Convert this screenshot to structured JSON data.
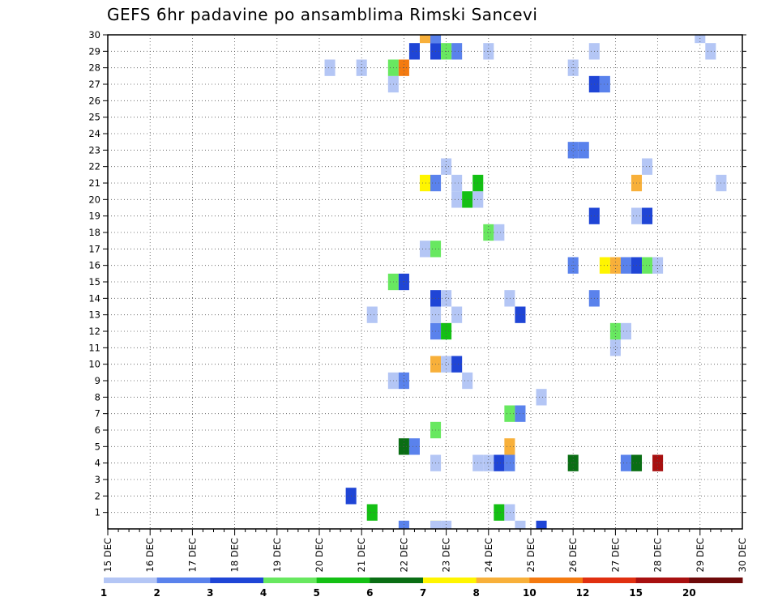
{
  "chart_data": {
    "type": "heatmap",
    "title": "GEFS 6hr padavine po ansamblima Rimski Sancevi",
    "x_tick_labels": [
      "15 DEC",
      "16 DEC",
      "17 DEC",
      "18 DEC",
      "19 DEC",
      "20 DEC",
      "21 DEC",
      "22 DEC",
      "23 DEC",
      "24 DEC",
      "25 DEC",
      "26 DEC",
      "27 DEC",
      "28 DEC",
      "29 DEC",
      "30 DEC"
    ],
    "y_tick_labels": [
      "1",
      "2",
      "3",
      "4",
      "5",
      "6",
      "7",
      "8",
      "9",
      "10",
      "11",
      "12",
      "13",
      "14",
      "15",
      "16",
      "17",
      "18",
      "19",
      "20",
      "21",
      "22",
      "23",
      "24",
      "25",
      "26",
      "27",
      "28",
      "29",
      "30"
    ],
    "x_range_days": [
      15,
      30
    ],
    "y_range": [
      0,
      30
    ],
    "grid": true,
    "time_step_days": 0.25,
    "colorbar": {
      "labels": [
        "1",
        "2",
        "3",
        "4",
        "5",
        "6",
        "7",
        "8",
        "10",
        "12",
        "15",
        "20"
      ],
      "colors": [
        "#b4c6f5",
        "#5a82ec",
        "#1f45d6",
        "#68e860",
        "#14c014",
        "#0a6e14",
        "#fff500",
        "#f8b03a",
        "#f47a10",
        "#e03010",
        "#a81010",
        "#6e0a0a"
      ]
    },
    "cells": [
      {
        "t": 22.0,
        "m": 0,
        "c": 1
      },
      {
        "t": 22.75,
        "m": 0,
        "c": 6
      },
      {
        "t": 22.75,
        "m": 0,
        "c": 0
      },
      {
        "t": 23.0,
        "m": 0,
        "c": 0
      },
      {
        "t": 24.75,
        "m": 0,
        "c": 0
      },
      {
        "t": 25.25,
        "m": 0,
        "c": 2
      },
      {
        "t": 21.25,
        "m": 1,
        "c": 4
      },
      {
        "t": 24.25,
        "m": 1,
        "c": 4
      },
      {
        "t": 24.5,
        "m": 1,
        "c": 0
      },
      {
        "t": 20.75,
        "m": 2,
        "c": 2
      },
      {
        "t": 22.75,
        "m": 4,
        "c": 0
      },
      {
        "t": 23.75,
        "m": 4,
        "c": 0
      },
      {
        "t": 24.0,
        "m": 4,
        "c": 0
      },
      {
        "t": 24.25,
        "m": 4,
        "c": 2
      },
      {
        "t": 24.5,
        "m": 4,
        "c": 1
      },
      {
        "t": 26.0,
        "m": 4,
        "c": 5
      },
      {
        "t": 27.25,
        "m": 4,
        "c": 1
      },
      {
        "t": 27.5,
        "m": 4,
        "c": 5
      },
      {
        "t": 28.0,
        "m": 4,
        "c": 10
      },
      {
        "t": 22.0,
        "m": 5,
        "c": 5
      },
      {
        "t": 22.25,
        "m": 5,
        "c": 1
      },
      {
        "t": 24.5,
        "m": 5,
        "c": 7
      },
      {
        "t": 22.75,
        "m": 6,
        "c": 3
      },
      {
        "t": 24.5,
        "m": 7,
        "c": 3
      },
      {
        "t": 24.75,
        "m": 7,
        "c": 1
      },
      {
        "t": 25.25,
        "m": 8,
        "c": 0
      },
      {
        "t": 21.75,
        "m": 9,
        "c": 0
      },
      {
        "t": 22.0,
        "m": 9,
        "c": 1
      },
      {
        "t": 23.5,
        "m": 9,
        "c": 0
      },
      {
        "t": 22.75,
        "m": 10,
        "c": 7
      },
      {
        "t": 23.0,
        "m": 10,
        "c": 0
      },
      {
        "t": 23.25,
        "m": 10,
        "c": 2
      },
      {
        "t": 27.0,
        "m": 11,
        "c": 0
      },
      {
        "t": 22.75,
        "m": 12,
        "c": 1
      },
      {
        "t": 23.0,
        "m": 12,
        "c": 4
      },
      {
        "t": 27.0,
        "m": 12,
        "c": 3
      },
      {
        "t": 27.25,
        "m": 12,
        "c": 0
      },
      {
        "t": 21.25,
        "m": 13,
        "c": 0
      },
      {
        "t": 22.75,
        "m": 13,
        "c": 0
      },
      {
        "t": 23.25,
        "m": 13,
        "c": 0
      },
      {
        "t": 24.75,
        "m": 13,
        "c": 2
      },
      {
        "t": 22.75,
        "m": 14,
        "c": 2
      },
      {
        "t": 23.0,
        "m": 14,
        "c": 0
      },
      {
        "t": 24.5,
        "m": 14,
        "c": 0
      },
      {
        "t": 26.5,
        "m": 14,
        "c": 1
      },
      {
        "t": 21.75,
        "m": 15,
        "c": 3
      },
      {
        "t": 22.0,
        "m": 15,
        "c": 2
      },
      {
        "t": 26.0,
        "m": 16,
        "c": 1
      },
      {
        "t": 26.75,
        "m": 16,
        "c": 6
      },
      {
        "t": 27.0,
        "m": 16,
        "c": 7
      },
      {
        "t": 27.25,
        "m": 16,
        "c": 1
      },
      {
        "t": 27.5,
        "m": 16,
        "c": 2
      },
      {
        "t": 27.75,
        "m": 16,
        "c": 3
      },
      {
        "t": 28.0,
        "m": 16,
        "c": 0
      },
      {
        "t": 22.5,
        "m": 17,
        "c": 0
      },
      {
        "t": 22.75,
        "m": 17,
        "c": 3
      },
      {
        "t": 24.0,
        "m": 18,
        "c": 3
      },
      {
        "t": 24.25,
        "m": 18,
        "c": 0
      },
      {
        "t": 26.5,
        "m": 19,
        "c": 2
      },
      {
        "t": 27.5,
        "m": 19,
        "c": 0
      },
      {
        "t": 27.75,
        "m": 19,
        "c": 2
      },
      {
        "t": 23.25,
        "m": 20,
        "c": 0
      },
      {
        "t": 23.5,
        "m": 20,
        "c": 4
      },
      {
        "t": 23.75,
        "m": 20,
        "c": 0
      },
      {
        "t": 27.5,
        "m": 21,
        "c": 7
      },
      {
        "t": 22.5,
        "m": 21,
        "c": 6
      },
      {
        "t": 22.75,
        "m": 21,
        "c": 1
      },
      {
        "t": 23.25,
        "m": 21,
        "c": 0
      },
      {
        "t": 23.75,
        "m": 21,
        "c": 4
      },
      {
        "t": 29.5,
        "m": 21,
        "c": 0
      },
      {
        "t": 23.0,
        "m": 22,
        "c": 0
      },
      {
        "t": 27.75,
        "m": 22,
        "c": 0
      },
      {
        "t": 26.0,
        "m": 23,
        "c": 1
      },
      {
        "t": 26.25,
        "m": 23,
        "c": 1
      },
      {
        "t": 21.75,
        "m": 27,
        "c": 0
      },
      {
        "t": 26.5,
        "m": 27,
        "c": 2
      },
      {
        "t": 26.75,
        "m": 27,
        "c": 1
      },
      {
        "t": 20.25,
        "m": 28,
        "c": 0
      },
      {
        "t": 21.0,
        "m": 28,
        "c": 0
      },
      {
        "t": 21.75,
        "m": 28,
        "c": 3
      },
      {
        "t": 22.0,
        "m": 28,
        "c": 8
      },
      {
        "t": 26.0,
        "m": 28,
        "c": 0
      },
      {
        "t": 22.25,
        "m": 29,
        "c": 2
      },
      {
        "t": 22.75,
        "m": 29,
        "c": 2
      },
      {
        "t": 23.0,
        "m": 29,
        "c": 3
      },
      {
        "t": 23.25,
        "m": 29,
        "c": 1
      },
      {
        "t": 24.0,
        "m": 29,
        "c": 0
      },
      {
        "t": 26.5,
        "m": 29,
        "c": 0
      },
      {
        "t": 29.25,
        "m": 29,
        "c": 0
      },
      {
        "t": 22.5,
        "m": 30,
        "c": 7
      },
      {
        "t": 22.75,
        "m": 30,
        "c": 1
      },
      {
        "t": 29.0,
        "m": 30,
        "c": 0
      }
    ]
  }
}
